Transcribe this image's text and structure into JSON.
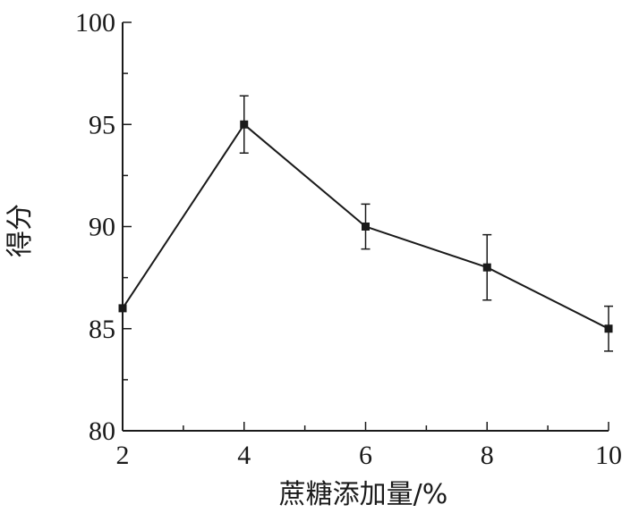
{
  "chart_data": {
    "type": "line",
    "xlabel": "蔗糖添加量/%",
    "ylabel": "得分",
    "xlim": [
      2,
      10
    ],
    "ylim": [
      80,
      100
    ],
    "x_ticks": [
      "2",
      "4",
      "6",
      "8",
      "10"
    ],
    "y_ticks": [
      "80",
      "85",
      "90",
      "95",
      "100"
    ],
    "grid": false,
    "series": [
      {
        "x": [
          2,
          4,
          6,
          8,
          10
        ],
        "y": [
          86,
          95,
          90,
          88,
          85
        ],
        "error": [
          null,
          1.4,
          1.1,
          1.6,
          1.1
        ],
        "color": "#1a1a1a",
        "marker": "square"
      }
    ]
  }
}
